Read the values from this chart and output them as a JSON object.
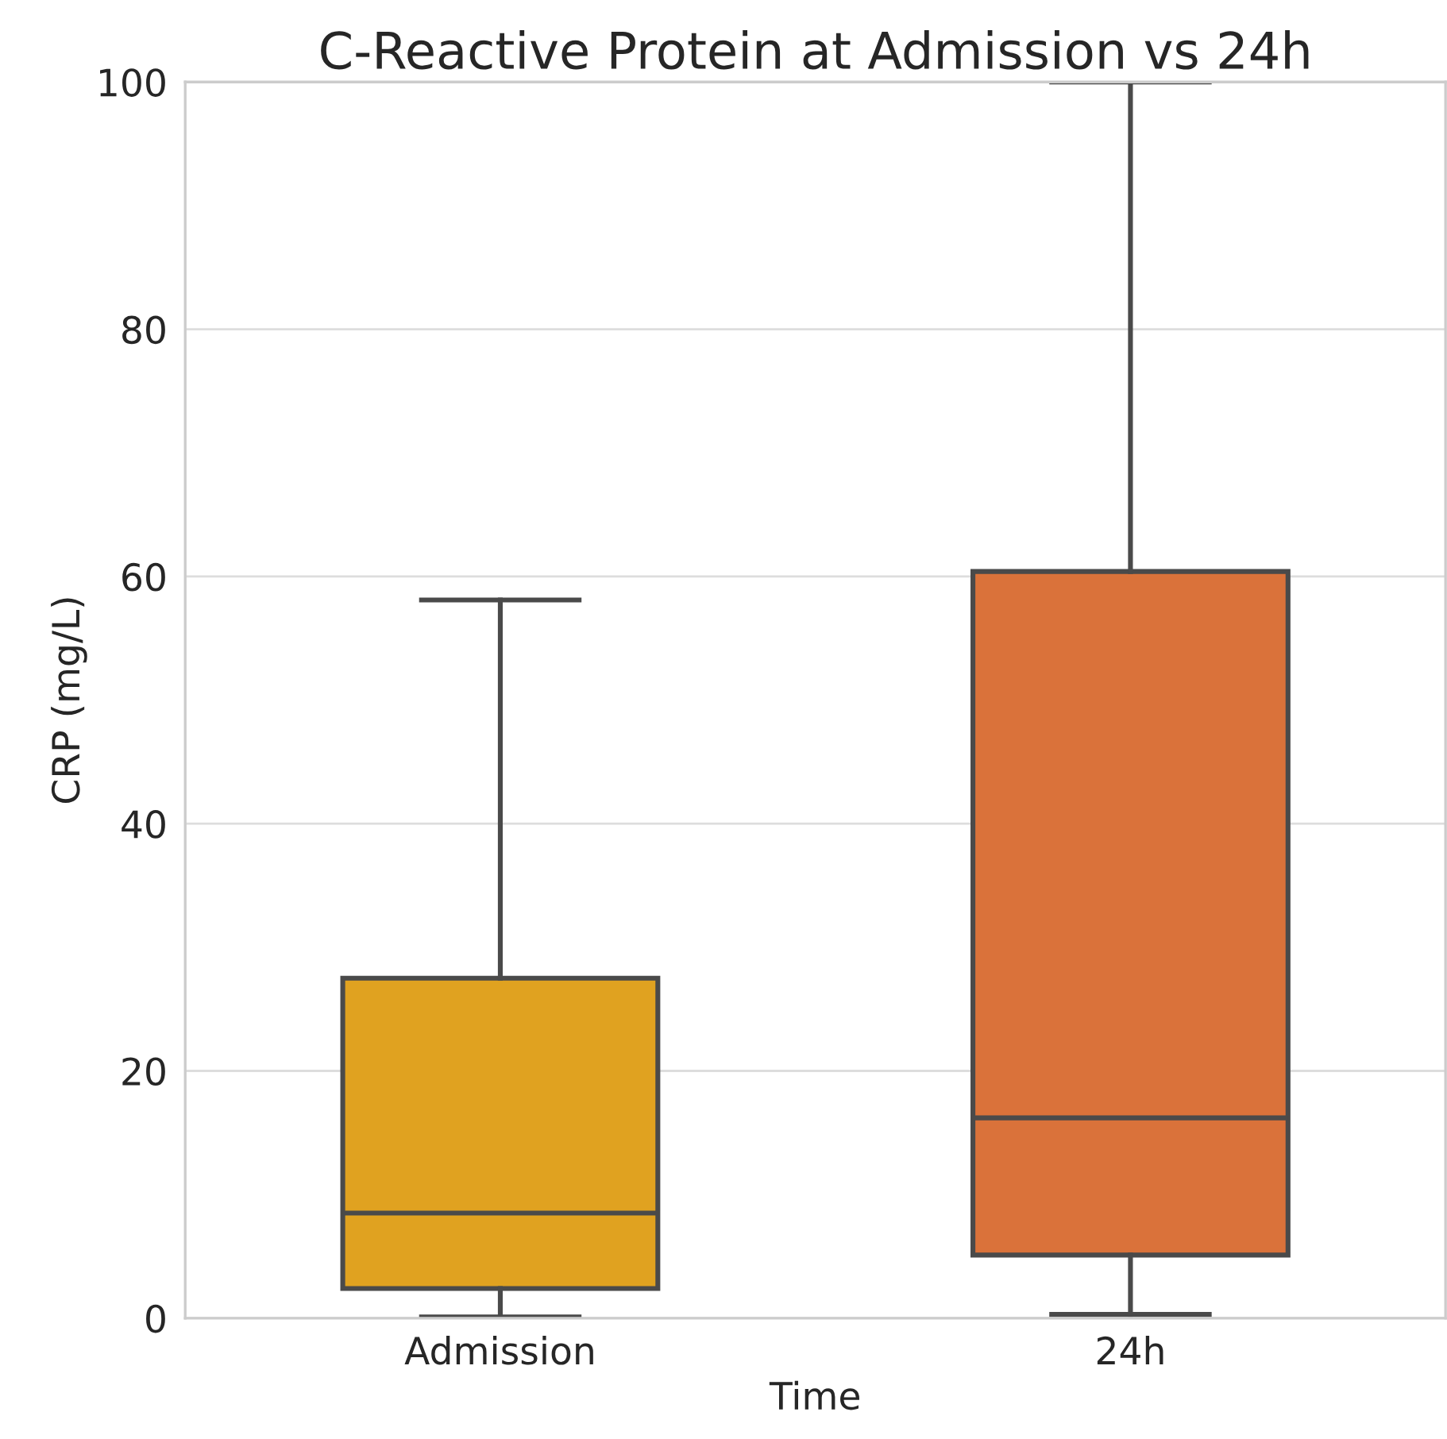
{
  "chart_data": {
    "type": "box",
    "title": "C-Reactive Protein at Admission vs 24h",
    "xlabel": "Time",
    "ylabel": "CRP (mg/L)",
    "categories": [
      "Admission",
      "24h"
    ],
    "colors": [
      "#e0a220",
      "#da723a"
    ],
    "boxes": [
      {
        "low": 0.1,
        "q1": 2.4,
        "median": 8.5,
        "q3": 27.5,
        "high": 58.1
      },
      {
        "low": 0.3,
        "q1": 5.1,
        "median": 16.2,
        "q3": 60.4,
        "high": 100
      }
    ],
    "ylim": [
      0,
      100
    ],
    "yticks": [
      0,
      20,
      40,
      60,
      80,
      100
    ],
    "grid": "y"
  }
}
